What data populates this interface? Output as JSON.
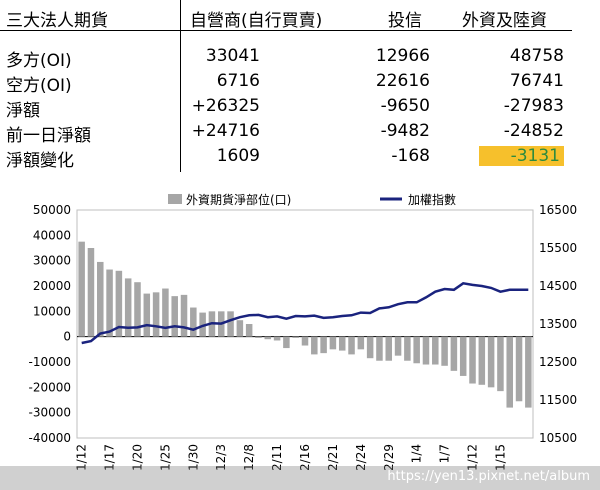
{
  "table": {
    "headers": [
      "三大法人期貨",
      "自營商(自行買賣)",
      "投信",
      "外資及陸資"
    ],
    "rows": [
      {
        "label": "多方(OI)",
        "values": [
          "33041",
          "12966",
          "48758"
        ]
      },
      {
        "label": "空方(OI)",
        "values": [
          "6716",
          "22616",
          "76741"
        ]
      },
      {
        "label": "淨額",
        "values": [
          "+26325",
          "-9650",
          "-27983"
        ]
      },
      {
        "label": "前一日淨額",
        "values": [
          "+24716",
          "-9482",
          "-24852"
        ]
      },
      {
        "label": "淨額變化",
        "values": [
          "1609",
          "-168",
          "-3131"
        ]
      }
    ],
    "highlight_color": "#f6c02c",
    "highlight_text_color": "#2e8b3e"
  },
  "chart_data": {
    "type": "bar",
    "series": [
      {
        "name": "外資期貨淨部位(口)",
        "kind": "bar",
        "axis": "left",
        "color": "#a6a6a6",
        "values": [
          37500,
          35000,
          29500,
          26500,
          26000,
          23000,
          21500,
          17000,
          17500,
          19000,
          16000,
          16500,
          11500,
          9500,
          10000,
          10000,
          10000,
          6500,
          5000,
          -500,
          -1000,
          -1500,
          -4500,
          -500,
          -3500,
          -7000,
          -6500,
          -5000,
          -5500,
          -7000,
          -5000,
          -8500,
          -9500,
          -9500,
          -7500,
          -9500,
          -10500,
          -11000,
          -11000,
          -11500,
          -13500,
          -15500,
          -18500,
          -19000,
          -20000,
          -21500,
          -28000,
          -25500,
          -28000
        ]
      },
      {
        "name": "加權指數",
        "kind": "line",
        "axis": "right",
        "color": "#1a237e",
        "values": [
          13000,
          13050,
          13250,
          13300,
          13420,
          13400,
          13410,
          13470,
          13440,
          13400,
          13440,
          13410,
          13350,
          13450,
          13520,
          13510,
          13600,
          13680,
          13730,
          13740,
          13680,
          13700,
          13640,
          13710,
          13700,
          13720,
          13660,
          13680,
          13710,
          13730,
          13800,
          13790,
          13910,
          13940,
          14020,
          14070,
          14070,
          14200,
          14350,
          14420,
          14400,
          14570,
          14530,
          14500,
          14450,
          14350,
          14400,
          14400,
          14400
        ]
      }
    ],
    "x_tick_labels": [
      "11/12",
      "11/17",
      "11/20",
      "11/25",
      "11/30",
      "12/3",
      "12/8",
      "12/11",
      "12/16",
      "12/21",
      "12/24",
      "12/29",
      "1/4",
      "1/7",
      "1/12",
      "1/15"
    ],
    "x_tick_index": [
      0,
      3,
      6,
      9,
      12,
      15,
      18,
      21,
      24,
      27,
      30,
      33,
      36,
      39,
      42,
      45
    ],
    "yleft": {
      "min": -40000,
      "max": 50000,
      "ticks": [
        50000,
        40000,
        30000,
        20000,
        10000,
        0,
        -10000,
        -20000,
        -30000,
        -40000
      ]
    },
    "yright": {
      "min": 10500,
      "max": 16500,
      "ticks": [
        16500,
        15500,
        14500,
        13500,
        12500,
        11500,
        10500
      ]
    },
    "legend_position": "top-center"
  },
  "watermark": "https://yen13.pixnet.net/album"
}
